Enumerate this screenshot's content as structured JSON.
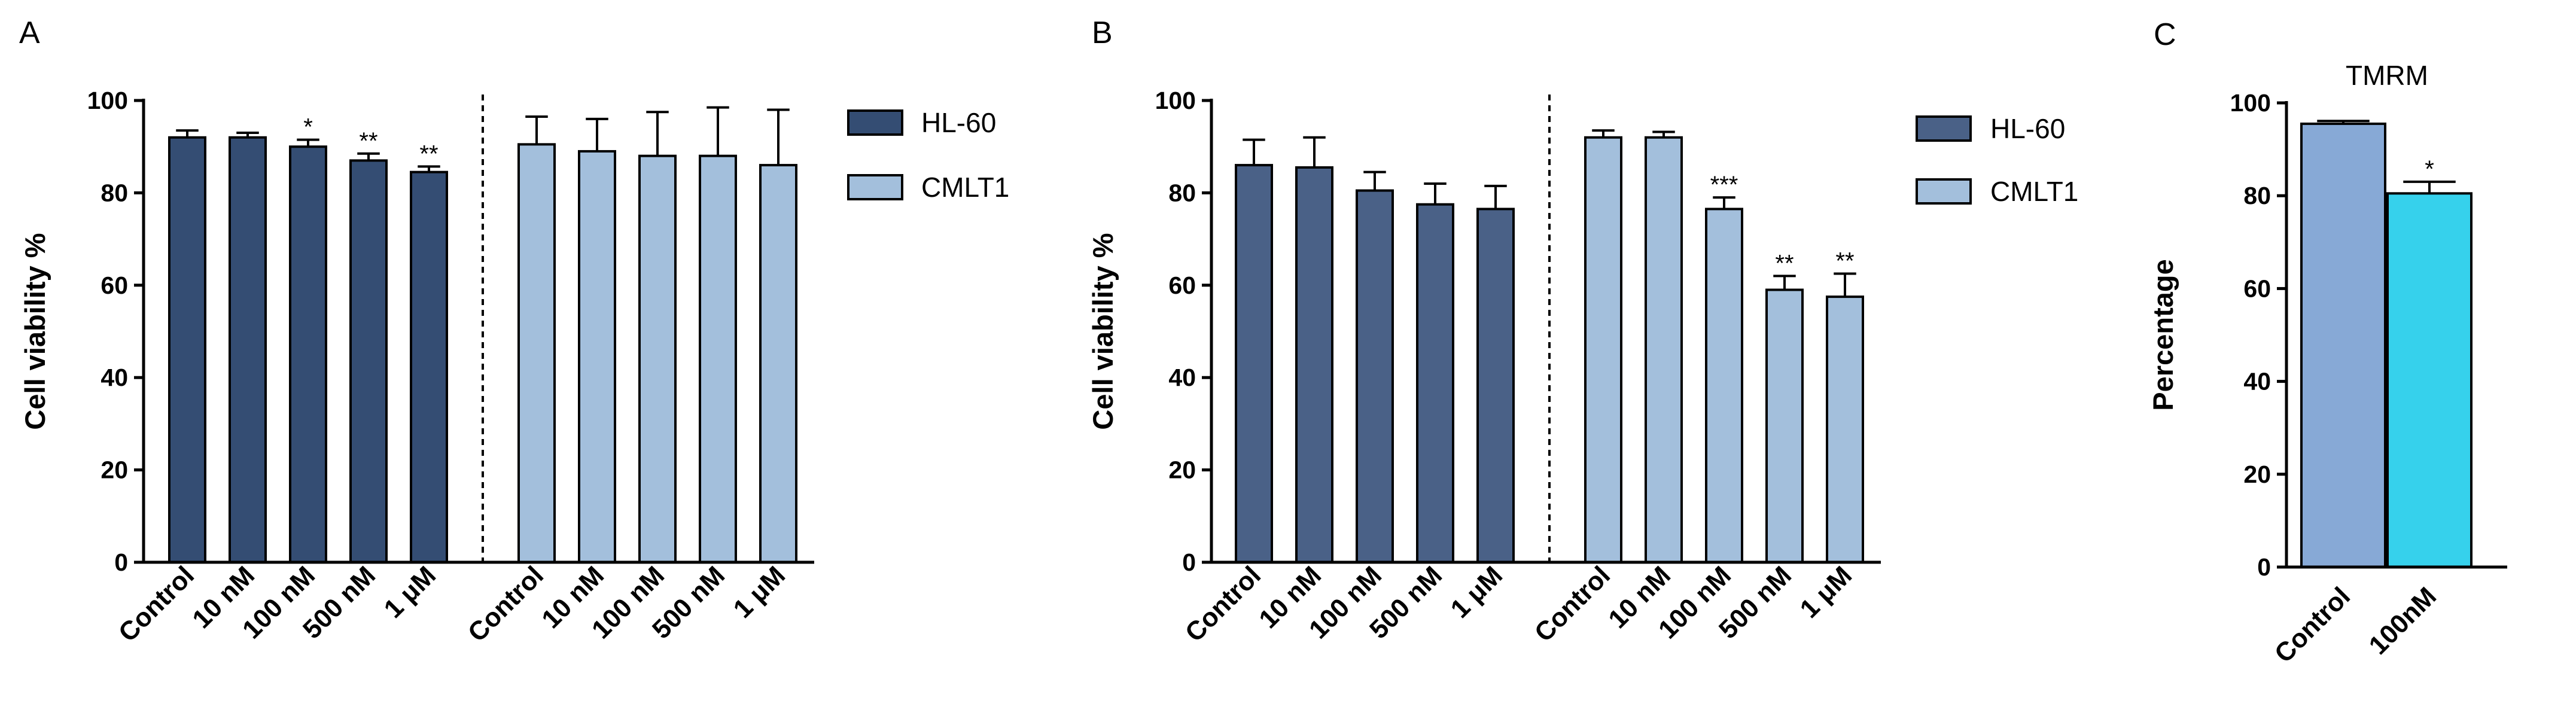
{
  "panels": {
    "a": "A",
    "b": "B",
    "c": "C"
  },
  "chart_data": [
    {
      "type": "bar",
      "panel": "A",
      "ylabel": "Cell viability %",
      "ylim": [
        0,
        100
      ],
      "yticks": [
        "0",
        "20",
        "40",
        "60",
        "80",
        "100"
      ],
      "legend": [
        "HL-60",
        "CMLT1"
      ],
      "groups": [
        {
          "name": "HL-60",
          "color": "#344d73",
          "categories": [
            "Control",
            "10 nM",
            "100 nM",
            "500 nM",
            "1 μM"
          ],
          "values": [
            92,
            92,
            90,
            87,
            84.5
          ],
          "errors": [
            1.5,
            1,
            1.5,
            1.5,
            1.2
          ],
          "significance": [
            "",
            "",
            "*",
            "**",
            "**"
          ]
        },
        {
          "name": "CMLT1",
          "color": "#a3bfdc",
          "categories": [
            "Control",
            "10 nM",
            "100 nM",
            "500 nM",
            "1 μM"
          ],
          "values": [
            90.5,
            89,
            88,
            88,
            86
          ],
          "errors": [
            6,
            7,
            9.5,
            10.5,
            12
          ],
          "significance": [
            "",
            "",
            "",
            "",
            ""
          ]
        }
      ]
    },
    {
      "type": "bar",
      "panel": "B",
      "ylabel": "Cell viability %",
      "ylim": [
        0,
        100
      ],
      "yticks": [
        "0",
        "20",
        "40",
        "60",
        "80",
        "100"
      ],
      "legend": [
        "HL-60",
        "CMLT1"
      ],
      "groups": [
        {
          "name": "HL-60",
          "color": "#4a6187",
          "categories": [
            "Control",
            "10 nM",
            "100 nM",
            "500 nM",
            "1 μM"
          ],
          "values": [
            86,
            85.5,
            80.5,
            77.5,
            76.5
          ],
          "errors": [
            5.5,
            6.5,
            4,
            4.5,
            5
          ],
          "significance": [
            "",
            "",
            "",
            "",
            ""
          ]
        },
        {
          "name": "CMLT1",
          "color": "#a3bfdc",
          "categories": [
            "Control",
            "10 nM",
            "100 nM",
            "500 nM",
            "1 μM"
          ],
          "values": [
            92,
            92,
            76.5,
            59,
            57.5
          ],
          "errors": [
            1.5,
            1.2,
            2.5,
            3,
            5
          ],
          "significance": [
            "",
            "",
            "***",
            "**",
            "**"
          ]
        }
      ]
    },
    {
      "type": "bar",
      "panel": "C",
      "title": "TMRM",
      "ylabel": "Percentage",
      "ylim": [
        0,
        100
      ],
      "yticks": [
        "0",
        "20",
        "40",
        "60",
        "80",
        "100"
      ],
      "categories": [
        "Control",
        "100nM"
      ],
      "values": [
        95.5,
        80.5
      ],
      "errors": [
        0.6,
        2.5
      ],
      "colors": [
        "#87a9d6",
        "#36d1ec"
      ],
      "significance": [
        "",
        "*"
      ]
    }
  ]
}
